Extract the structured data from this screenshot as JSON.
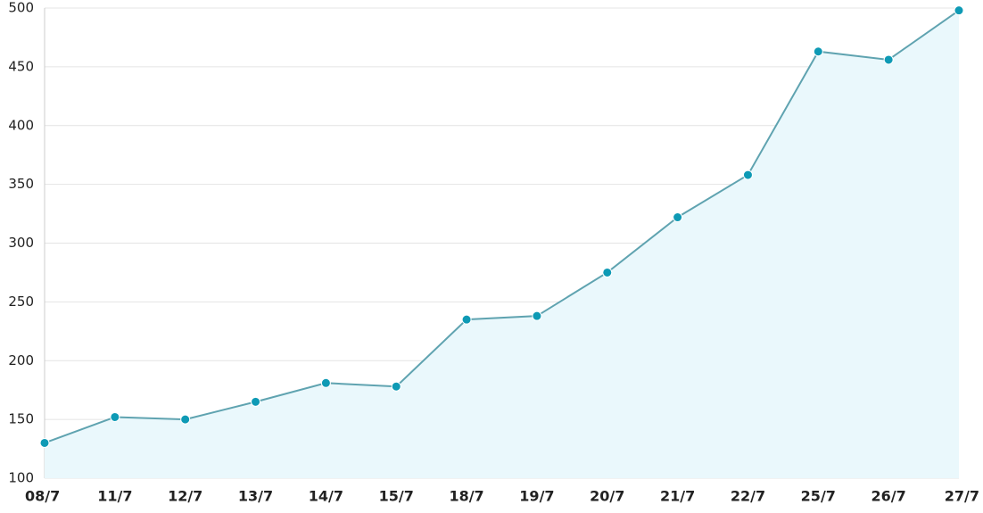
{
  "chart_data": {
    "type": "line",
    "categories": [
      "08/7",
      "11/7",
      "12/7",
      "13/7",
      "14/7",
      "15/7",
      "18/7",
      "19/7",
      "20/7",
      "21/7",
      "22/7",
      "25/7",
      "26/7",
      "27/7"
    ],
    "values": [
      130,
      152,
      150,
      165,
      181,
      178,
      235,
      238,
      275,
      322,
      358,
      463,
      456,
      498
    ],
    "color": "#5fa3b0",
    "marker_color": "#0e9ab5",
    "area_color": "#eaf8fc",
    "ylim": [
      100,
      500
    ],
    "yticks": [
      100,
      150,
      200,
      250,
      300,
      350,
      400,
      450,
      500
    ],
    "grid": true
  }
}
